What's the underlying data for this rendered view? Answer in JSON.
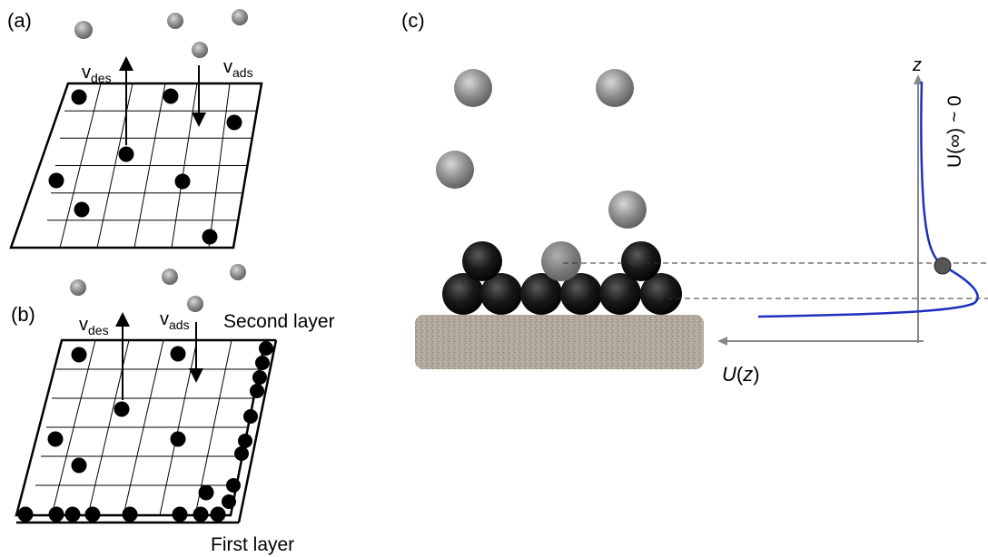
{
  "panels": {
    "a": {
      "label": "(a)",
      "v_des": {
        "main": "v",
        "sub": "des"
      },
      "v_ads": {
        "main": "v",
        "sub": "ads"
      }
    },
    "b": {
      "label": "(b)",
      "v_des": {
        "main": "v",
        "sub": "des"
      },
      "v_ads": {
        "main": "v",
        "sub": "ads"
      },
      "second_layer": "Second layer",
      "first_layer": "First layer"
    },
    "c": {
      "label": "(c)",
      "z_axis": "z",
      "u_axis": {
        "main": "U",
        "open": "(",
        "var": "z",
        "close": ")"
      },
      "u_inf": "U(∞) ~ 0"
    }
  },
  "colors": {
    "particle_dark": "#111111",
    "particle_gray": "#8a8a8a",
    "potential_curve": "#1f2fbf",
    "substrate": "#b3a89c",
    "axis": "#888888"
  }
}
